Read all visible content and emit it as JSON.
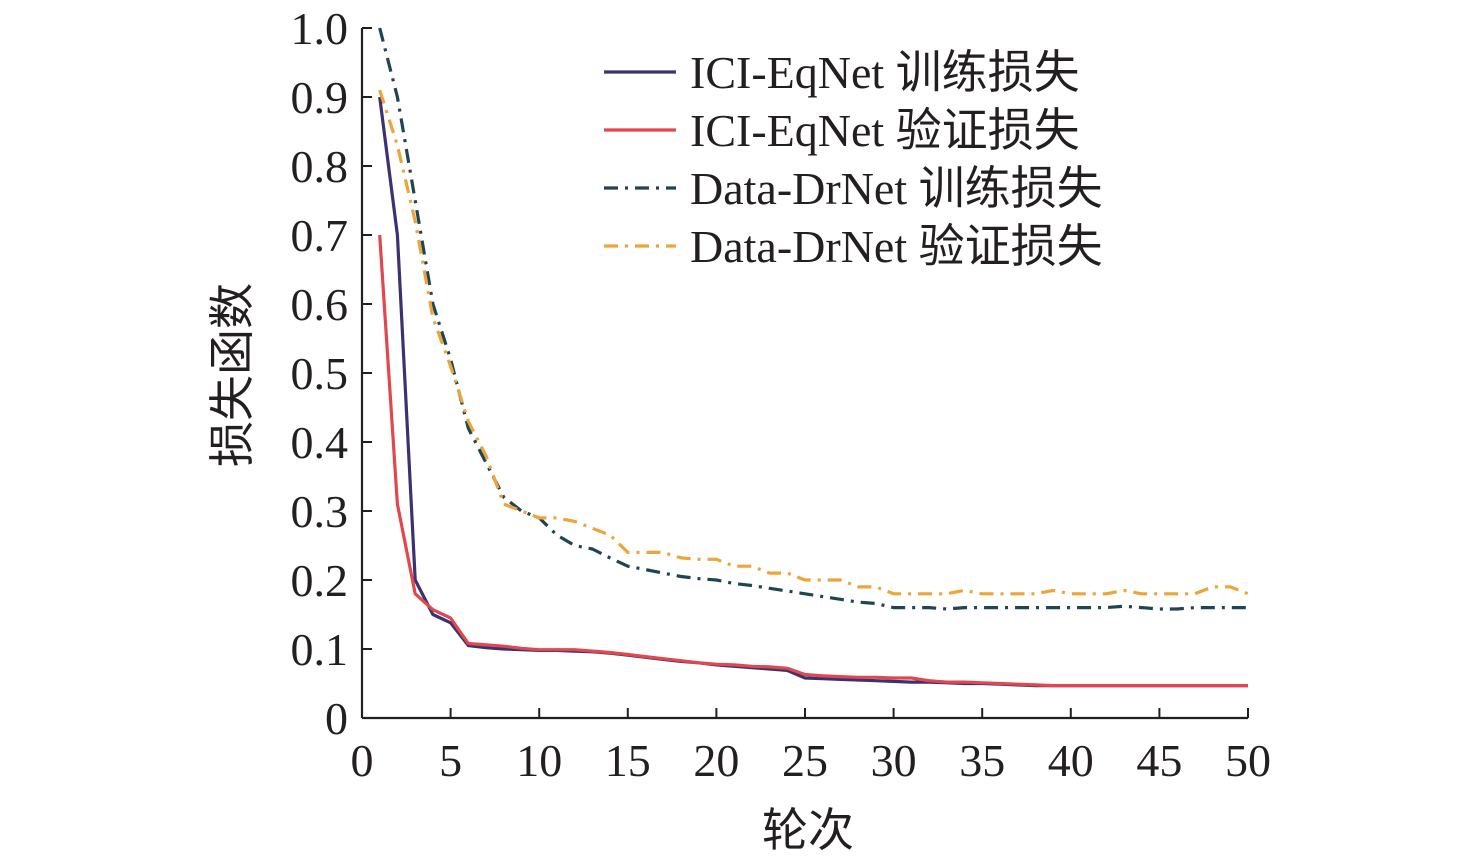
{
  "chart_data": {
    "type": "line",
    "title": "",
    "xlabel": "轮次",
    "ylabel": "损失函数",
    "xlim": [
      0,
      50
    ],
    "ylim": [
      0,
      1.0
    ],
    "x_ticks": [
      0,
      5,
      10,
      15,
      20,
      25,
      30,
      35,
      40,
      45,
      50
    ],
    "x_tick_labels": [
      "0",
      "5",
      "10",
      "15",
      "20",
      "25",
      "30",
      "35",
      "40",
      "45",
      "50"
    ],
    "y_ticks": [
      0,
      0.1,
      0.2,
      0.3,
      0.4,
      0.5,
      0.6,
      0.7,
      0.8,
      0.9,
      1.0
    ],
    "y_tick_labels": [
      "0",
      "0.1",
      "0.2",
      "0.3",
      "0.4",
      "0.5",
      "0.6",
      "0.7",
      "0.8",
      "0.9",
      "1.0"
    ],
    "grid": false,
    "legend_position": "top-right",
    "x": [
      1,
      2,
      3,
      4,
      5,
      6,
      7,
      8,
      9,
      10,
      11,
      12,
      13,
      14,
      15,
      16,
      17,
      18,
      19,
      20,
      21,
      22,
      23,
      24,
      25,
      26,
      27,
      28,
      29,
      30,
      31,
      32,
      33,
      34,
      35,
      36,
      37,
      38,
      39,
      40,
      41,
      42,
      43,
      44,
      45,
      46,
      47,
      48,
      49,
      50
    ],
    "series": [
      {
        "name": "ICI-EqNet 训练损失",
        "color": "#3b3271",
        "dash": "solid",
        "values": [
          0.9,
          0.7,
          0.2,
          0.15,
          0.138,
          0.105,
          0.102,
          0.1,
          0.099,
          0.098,
          0.098,
          0.097,
          0.096,
          0.094,
          0.091,
          0.088,
          0.085,
          0.082,
          0.08,
          0.077,
          0.075,
          0.073,
          0.071,
          0.069,
          0.058,
          0.057,
          0.056,
          0.055,
          0.054,
          0.053,
          0.052,
          0.052,
          0.051,
          0.05,
          0.05,
          0.049,
          0.048,
          0.047,
          0.047,
          0.047,
          0.047,
          0.047,
          0.047,
          0.047,
          0.047,
          0.047,
          0.047,
          0.047,
          0.047,
          0.047
        ]
      },
      {
        "name": "ICI-EqNet 验证损失",
        "color": "#e2474e",
        "dash": "solid",
        "values": [
          0.7,
          0.31,
          0.18,
          0.157,
          0.145,
          0.108,
          0.106,
          0.104,
          0.101,
          0.099,
          0.099,
          0.099,
          0.097,
          0.095,
          0.092,
          0.089,
          0.086,
          0.083,
          0.08,
          0.078,
          0.077,
          0.075,
          0.074,
          0.072,
          0.063,
          0.061,
          0.06,
          0.059,
          0.059,
          0.058,
          0.058,
          0.054,
          0.052,
          0.052,
          0.051,
          0.05,
          0.049,
          0.048,
          0.047,
          0.047,
          0.047,
          0.047,
          0.047,
          0.047,
          0.047,
          0.047,
          0.047,
          0.047,
          0.047,
          0.047
        ]
      },
      {
        "name": "Data-DrNet 训练损失",
        "color": "#1f4550",
        "dash": "dashdot",
        "values": [
          1.0,
          0.9,
          0.75,
          0.6,
          0.52,
          0.42,
          0.37,
          0.32,
          0.3,
          0.29,
          0.265,
          0.25,
          0.245,
          0.232,
          0.22,
          0.215,
          0.21,
          0.205,
          0.202,
          0.2,
          0.195,
          0.192,
          0.188,
          0.184,
          0.18,
          0.176,
          0.172,
          0.168,
          0.166,
          0.16,
          0.16,
          0.16,
          0.158,
          0.16,
          0.16,
          0.16,
          0.16,
          0.16,
          0.16,
          0.16,
          0.16,
          0.16,
          0.162,
          0.16,
          0.158,
          0.158,
          0.16,
          0.16,
          0.16,
          0.16
        ]
      },
      {
        "name": "Data-DrNet 验证损失",
        "color": "#eda43a",
        "dash": "dashdot",
        "values": [
          0.91,
          0.83,
          0.72,
          0.58,
          0.51,
          0.43,
          0.38,
          0.31,
          0.3,
          0.29,
          0.29,
          0.285,
          0.275,
          0.265,
          0.24,
          0.24,
          0.24,
          0.232,
          0.23,
          0.23,
          0.22,
          0.22,
          0.21,
          0.21,
          0.2,
          0.2,
          0.2,
          0.19,
          0.19,
          0.18,
          0.18,
          0.18,
          0.18,
          0.185,
          0.18,
          0.18,
          0.18,
          0.18,
          0.185,
          0.18,
          0.18,
          0.18,
          0.185,
          0.18,
          0.18,
          0.18,
          0.18,
          0.19,
          0.19,
          0.18
        ]
      }
    ],
    "axis_color": "#231f20"
  }
}
